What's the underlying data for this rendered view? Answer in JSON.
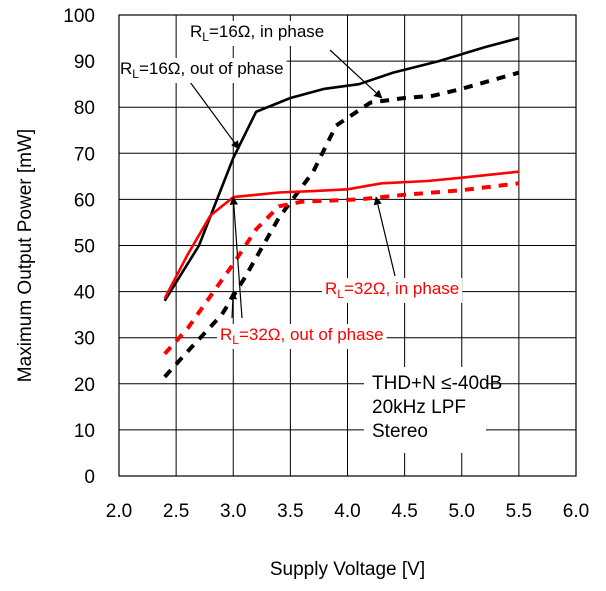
{
  "chart_data": {
    "type": "line",
    "xlabel": "Supply Voltage [V]",
    "ylabel": "Maximum Output Power [mW]",
    "xlim": [
      2.0,
      6.0
    ],
    "ylim": [
      0,
      100
    ],
    "xticks": [
      "2.0",
      "2.5",
      "3.0",
      "3.5",
      "4.0",
      "4.5",
      "5.0",
      "5.5",
      "6.0"
    ],
    "yticks": [
      "0",
      "10",
      "20",
      "30",
      "40",
      "50",
      "60",
      "70",
      "80",
      "90",
      "100"
    ],
    "grid": true,
    "series": [
      {
        "name": "RL=16Ω, in phase",
        "color": "#000000",
        "dash": false,
        "x": [
          2.4,
          2.7,
          3.0,
          3.2,
          3.5,
          3.8,
          4.1,
          4.4,
          4.8,
          5.2,
          5.5
        ],
        "y": [
          38,
          50,
          69,
          79,
          82,
          84,
          85,
          87.5,
          90,
          93,
          95
        ]
      },
      {
        "name": "RL=16Ω, out of phase",
        "color": "#000000",
        "dash": true,
        "x": [
          2.4,
          2.6,
          2.9,
          3.1,
          3.4,
          3.7,
          3.9,
          4.2,
          4.5,
          4.75,
          5.0,
          5.5
        ],
        "y": [
          21.5,
          27,
          35,
          43,
          56,
          66,
          76,
          81,
          82,
          82.5,
          84,
          87.5
        ]
      },
      {
        "name": "RL=32Ω, in phase",
        "color": "#ff0000",
        "dash": false,
        "x": [
          2.4,
          2.6,
          2.8,
          3.0,
          3.2,
          3.4,
          3.7,
          4.0,
          4.3,
          4.7,
          5.0,
          5.5
        ],
        "y": [
          38.5,
          48,
          56.5,
          60.5,
          61,
          61.5,
          61.8,
          62.2,
          63.5,
          64,
          64.7,
          66
        ]
      },
      {
        "name": "RL=32Ω, out of phase",
        "color": "#ff0000",
        "dash": true,
        "x": [
          2.4,
          2.6,
          2.8,
          3.0,
          3.2,
          3.4,
          3.6,
          3.8,
          4.1,
          4.5,
          5.0,
          5.5
        ],
        "y": [
          26.5,
          32,
          39,
          46,
          53.5,
          58.5,
          59.5,
          59.7,
          60,
          61,
          62,
          63.5
        ]
      }
    ],
    "annotations": [
      {
        "main": "R",
        "sub": "L",
        "rest": "=16Ω, in phase",
        "color": "#000000",
        "points_to": [
          4.3,
          82
        ]
      },
      {
        "main": "R",
        "sub": "L",
        "rest": "=16Ω, out of phase",
        "color": "#000000",
        "points_to": [
          3.05,
          71
        ]
      },
      {
        "main": "R",
        "sub": "L",
        "rest": "=32Ω, in phase",
        "color": "#ff0000",
        "points_to": [
          4.25,
          60.5
        ]
      },
      {
        "main": "R",
        "sub": "L",
        "rest": "=32Ω, out of phase",
        "color": "#ff0000",
        "points_to": [
          [
            3.0,
            60.5
          ],
          [
            3.0,
            40
          ]
        ]
      }
    ],
    "conditions": [
      "THD+N ≤-40dB",
      "20kHz LPF",
      "Stereo"
    ]
  }
}
